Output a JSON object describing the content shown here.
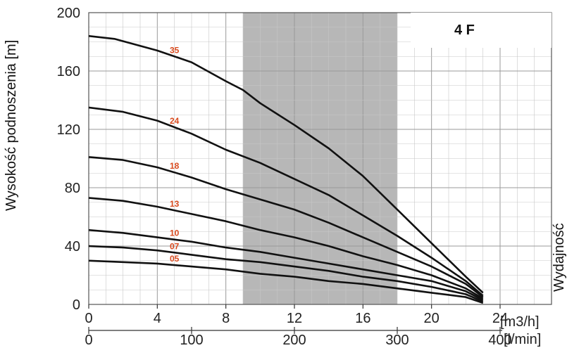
{
  "chart_data": {
    "type": "line",
    "title": "4 F",
    "ylabel": "Wysokość podnoszenia [m]",
    "right_label": "Wydajność",
    "x_unit_top": "[m3/h]",
    "x_unit_bottom": "[l/min]",
    "xlim": [
      0,
      27
    ],
    "ylim": [
      0,
      200
    ],
    "x_ticks": [
      "0",
      "4",
      "8",
      "12",
      "16",
      "20",
      "24"
    ],
    "x_ticks_lmin": [
      "0",
      "100",
      "200",
      "300",
      "400"
    ],
    "y_ticks": [
      "0",
      "40",
      "80",
      "120",
      "160",
      "200"
    ],
    "grid": true,
    "shaded_range": [
      9,
      18
    ],
    "series": [
      {
        "name": "35",
        "x": [
          0,
          1.5,
          4,
          6,
          8,
          9,
          10,
          12,
          14,
          16,
          18,
          20,
          22,
          23
        ],
        "y": [
          184,
          182,
          174,
          166,
          153,
          147,
          138,
          123,
          107,
          88,
          65,
          42,
          19,
          8
        ]
      },
      {
        "name": "24",
        "x": [
          0,
          2,
          4,
          6,
          8,
          10,
          12,
          14,
          16,
          18,
          20,
          22,
          23
        ],
        "y": [
          135,
          132,
          126,
          117,
          106,
          97,
          86,
          75,
          61,
          47,
          32,
          16,
          6
        ]
      },
      {
        "name": "18",
        "x": [
          0,
          2,
          4,
          6,
          8,
          10,
          12,
          14,
          16,
          18,
          20,
          22,
          23
        ],
        "y": [
          101,
          99,
          94,
          87,
          79,
          72,
          65,
          56,
          46,
          36,
          26,
          14,
          5
        ]
      },
      {
        "name": "13",
        "x": [
          0,
          2,
          4,
          6,
          8,
          10,
          12,
          14,
          16,
          18,
          20,
          22,
          23
        ],
        "y": [
          73,
          71,
          67,
          62,
          57,
          51,
          46,
          40,
          33,
          27,
          20,
          11,
          4
        ]
      },
      {
        "name": "10",
        "x": [
          0,
          2,
          4,
          6,
          8,
          10,
          12,
          14,
          16,
          18,
          20,
          22,
          23
        ],
        "y": [
          51,
          49,
          46,
          43,
          39,
          36,
          32,
          28,
          24,
          20,
          16,
          9,
          3
        ]
      },
      {
        "name": "07",
        "x": [
          0,
          2,
          4,
          6,
          8,
          10,
          12,
          14,
          16,
          18,
          20,
          22,
          23
        ],
        "y": [
          40,
          39,
          37,
          34,
          31,
          29,
          26,
          23,
          19,
          16,
          12,
          7,
          2
        ]
      },
      {
        "name": "05",
        "x": [
          0,
          2,
          4,
          6,
          8,
          10,
          12,
          14,
          16,
          18,
          20,
          22,
          23
        ],
        "y": [
          30,
          29,
          28,
          26,
          24,
          21,
          19,
          16,
          14,
          11,
          8,
          5,
          1
        ]
      }
    ],
    "colors": {
      "curve": "#111111",
      "label": "#d94a1e",
      "shade": "#b7b7b7",
      "grid": "#c8c8c8"
    }
  }
}
